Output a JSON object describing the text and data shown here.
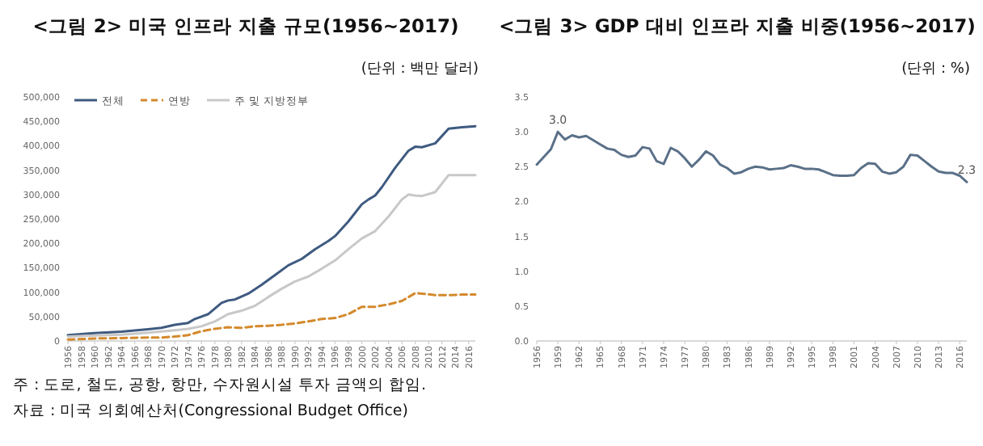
{
  "chart_data": [
    {
      "type": "line",
      "title": "<그림 2> 미국 인프라 지출 규모(1956~2017)",
      "subtitle": "(단위 : 백만 달러)",
      "xlim": [
        1956,
        2017
      ],
      "xticks": [
        1956,
        1958,
        1960,
        1962,
        1964,
        1966,
        1968,
        1970,
        1972,
        1974,
        1976,
        1978,
        1980,
        1982,
        1984,
        1986,
        1988,
        1990,
        1992,
        1994,
        1996,
        1998,
        2000,
        2002,
        2004,
        2006,
        2008,
        2010,
        2012,
        2014,
        2016
      ],
      "ylim": [
        0,
        500000
      ],
      "yticks": [
        0,
        {
          "value": 50000,
          "label": "50,000"
        },
        {
          "value": 100000,
          "label": "100,000"
        },
        {
          "value": 150000,
          "label": "150,000"
        },
        {
          "value": 200000,
          "label": "200,000"
        },
        {
          "value": 250000,
          "label": "250,000"
        },
        {
          "value": 300000,
          "label": "300,000"
        },
        {
          "value": 350000,
          "label": "350,000"
        },
        {
          "value": 400000,
          "label": "400,000"
        },
        {
          "value": 450000,
          "label": "450,000"
        },
        {
          "value": 500000,
          "label": "500,000"
        }
      ],
      "legend": "top left",
      "series": [
        {
          "name": "전체",
          "color": "#3e5a80",
          "x": [
            1956,
            1960,
            1964,
            1968,
            1970,
            1972,
            1974,
            1975,
            1977,
            1979,
            1980,
            1981,
            1983,
            1985,
            1987,
            1989,
            1991,
            1993,
            1995,
            1996,
            1998,
            2000,
            2001,
            2002,
            2003,
            2005,
            2007,
            2008,
            2009,
            2011,
            2013,
            2015,
            2017
          ],
          "values": [
            12000,
            16000,
            19000,
            24000,
            27000,
            33000,
            37000,
            45000,
            55000,
            78000,
            83000,
            85000,
            97000,
            115000,
            135000,
            155000,
            168000,
            188000,
            205000,
            215000,
            245000,
            280000,
            290000,
            298000,
            315000,
            355000,
            390000,
            398000,
            397000,
            405000,
            435000,
            438000,
            440000
          ]
        },
        {
          "name": "연방",
          "color": "#d4892c",
          "line_style": "dashed",
          "x": [
            1956,
            1960,
            1964,
            1968,
            1970,
            1972,
            1974,
            1976,
            1978,
            1980,
            1982,
            1984,
            1986,
            1988,
            1990,
            1992,
            1994,
            1996,
            1998,
            2000,
            2002,
            2004,
            2006,
            2008,
            2009,
            2011,
            2013,
            2015,
            2017
          ],
          "values": [
            3000,
            5000,
            6000,
            7000,
            7000,
            9000,
            12000,
            20000,
            25000,
            28000,
            27000,
            30000,
            31000,
            33000,
            36000,
            40000,
            45000,
            47000,
            55000,
            70000,
            70000,
            75000,
            82000,
            98000,
            97000,
            94000,
            94000,
            95000,
            95000
          ]
        },
        {
          "name": "주 및 지방정부",
          "color": "#c8c8c8",
          "x": [
            1956,
            1960,
            1964,
            1968,
            1972,
            1974,
            1976,
            1978,
            1980,
            1982,
            1984,
            1986,
            1988,
            1990,
            1992,
            1994,
            1996,
            1998,
            2000,
            2002,
            2004,
            2006,
            2007,
            2008,
            2009,
            2011,
            2013,
            2015,
            2017
          ],
          "values": [
            9000,
            11000,
            13000,
            17000,
            22000,
            25000,
            30000,
            40000,
            55000,
            62000,
            72000,
            90000,
            107000,
            122000,
            132000,
            148000,
            165000,
            188000,
            210000,
            225000,
            255000,
            290000,
            300000,
            298000,
            297000,
            305000,
            340000,
            340000,
            340000
          ]
        }
      ],
      "annotations": [
        "주 : 도로, 철도, 공항, 항만, 수자원시설 투자 금액의 합임.",
        "자료 : 미국 의회예산처(Congressional Budget Office)"
      ]
    },
    {
      "type": "line",
      "title": "<그림 3> GDP 대비 인프라 지출 비중(1956~2017)",
      "subtitle": "(단위 : %)",
      "xlim": [
        1956,
        2017
      ],
      "xticks": [
        1956,
        1959,
        1962,
        1965,
        1968,
        1971,
        1974,
        1977,
        1980,
        1983,
        1986,
        1989,
        1992,
        1995,
        1998,
        2001,
        2004,
        2007,
        2010,
        2013,
        2016
      ],
      "ylim": [
        0,
        3.5
      ],
      "yticks": [
        {
          "value": 0,
          "label": "0.0"
        },
        {
          "value": 0.5,
          "label": "0.5"
        },
        {
          "value": 1,
          "label": "1.0"
        },
        {
          "value": 1.5,
          "label": "1.5"
        },
        {
          "value": 2,
          "label": "2.0"
        },
        {
          "value": 2.5,
          "label": "2.5"
        },
        {
          "value": 3,
          "label": "3.0"
        },
        {
          "value": 3.5,
          "label": "3.5"
        }
      ],
      "series": [
        {
          "color": "#5a7088",
          "x": [
            1956,
            1958,
            1959,
            1960,
            1961,
            1962,
            1963,
            1964,
            1965,
            1966,
            1967,
            1968,
            1969,
            1970,
            1971,
            1972,
            1973,
            1974,
            1975,
            1976,
            1977,
            1978,
            1979,
            1980,
            1981,
            1982,
            1983,
            1984,
            1985,
            1986,
            1987,
            1988,
            1989,
            1990,
            1991,
            1992,
            1993,
            1994,
            1995,
            1996,
            1997,
            1998,
            1999,
            2000,
            2001,
            2002,
            2003,
            2004,
            2005,
            2006,
            2007,
            2008,
            2009,
            2010,
            2011,
            2012,
            2013,
            2014,
            2015,
            2016,
            2017
          ],
          "values": [
            2.53,
            2.75,
            3.0,
            2.89,
            2.95,
            2.92,
            2.94,
            2.88,
            2.82,
            2.76,
            2.74,
            2.67,
            2.64,
            2.66,
            2.78,
            2.76,
            2.58,
            2.54,
            2.77,
            2.72,
            2.62,
            2.5,
            2.6,
            2.72,
            2.66,
            2.53,
            2.48,
            2.4,
            2.42,
            2.47,
            2.5,
            2.49,
            2.46,
            2.47,
            2.48,
            2.52,
            2.5,
            2.47,
            2.47,
            2.46,
            2.42,
            2.38,
            2.37,
            2.37,
            2.38,
            2.48,
            2.55,
            2.54,
            2.43,
            2.4,
            2.42,
            2.5,
            2.67,
            2.66,
            2.58,
            2.5,
            2.43,
            2.41,
            2.41,
            2.37,
            2.28
          ]
        }
      ],
      "annotations": [
        {
          "text": "3.0",
          "x": 1959,
          "y": 3.0
        },
        {
          "text": "2.3",
          "x": 2017,
          "y": 2.28
        }
      ]
    }
  ]
}
